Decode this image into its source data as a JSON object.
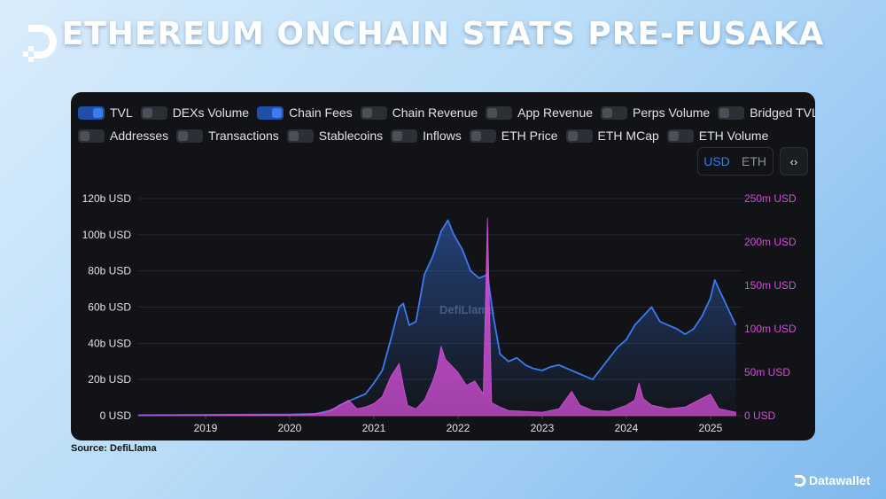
{
  "title": "ETHEREUM ONCHAIN STATS PRE-FUSAKA",
  "source": "Source: DefiLlama",
  "brand": "Datawallet",
  "watermark": "DefiLlama",
  "toggle_rows": [
    [
      {
        "label": "TVL",
        "on": true
      },
      {
        "label": "DEXs Volume",
        "on": false
      },
      {
        "label": "Chain Fees",
        "on": true
      },
      {
        "label": "Chain Revenue",
        "on": false
      },
      {
        "label": "App Revenue",
        "on": false
      },
      {
        "label": "Perps Volume",
        "on": false
      },
      {
        "label": "Bridged TVL",
        "on": false
      }
    ],
    [
      {
        "label": "Addresses",
        "on": false
      },
      {
        "label": "Transactions",
        "on": false
      },
      {
        "label": "Stablecoins",
        "on": false
      },
      {
        "label": "Inflows",
        "on": false
      },
      {
        "label": "ETH Price",
        "on": false
      },
      {
        "label": "ETH MCap",
        "on": false
      },
      {
        "label": "ETH Volume",
        "on": false
      }
    ]
  ],
  "unit_toggle": {
    "usd": "USD",
    "eth": "ETH",
    "active": "USD"
  },
  "embed_icon": "code-icon",
  "colors": {
    "tvl": "#3d7af0",
    "fees": "#d14fd6",
    "background": "#111316"
  },
  "chart_data": {
    "type": "area",
    "x_ticks": [
      "2019",
      "2020",
      "2021",
      "2022",
      "2023",
      "2024",
      "2025"
    ],
    "y_left": {
      "ticks": [
        "0 USD",
        "20b USD",
        "40b USD",
        "60b USD",
        "80b USD",
        "100b USD",
        "120b USD"
      ],
      "range": [
        0,
        120
      ]
    },
    "y_right": {
      "ticks": [
        "0 USD",
        "50m USD",
        "100m USD",
        "150m USD",
        "200m USD",
        "250m USD"
      ],
      "range": [
        0,
        250
      ]
    },
    "grid": "horizontal",
    "series": [
      {
        "name": "TVL",
        "axis": "left",
        "x": [
          2018.2,
          2019.0,
          2019.5,
          2020.0,
          2020.3,
          2020.5,
          2020.6,
          2020.75,
          2020.9,
          2021.0,
          2021.1,
          2021.2,
          2021.3,
          2021.35,
          2021.42,
          2021.5,
          2021.6,
          2021.7,
          2021.8,
          2021.88,
          2021.95,
          2022.05,
          2022.15,
          2022.25,
          2022.35,
          2022.42,
          2022.5,
          2022.6,
          2022.7,
          2022.8,
          2022.9,
          2023.0,
          2023.1,
          2023.2,
          2023.3,
          2023.4,
          2023.5,
          2023.6,
          2023.7,
          2023.8,
          2023.9,
          2024.0,
          2024.1,
          2024.2,
          2024.3,
          2024.4,
          2024.5,
          2024.6,
          2024.7,
          2024.8,
          2024.9,
          2025.0,
          2025.05,
          2025.1,
          2025.2,
          2025.3
        ],
        "values": [
          0.3,
          0.5,
          0.6,
          0.7,
          1.0,
          3,
          6,
          9,
          12,
          18,
          25,
          42,
          60,
          62,
          50,
          52,
          78,
          88,
          102,
          108,
          100,
          92,
          80,
          76,
          78,
          55,
          34,
          30,
          32,
          28,
          26,
          25,
          27,
          28,
          26,
          24,
          22,
          20,
          26,
          32,
          38,
          42,
          50,
          55,
          60,
          52,
          50,
          48,
          45,
          48,
          55,
          65,
          75,
          70,
          60,
          50
        ]
      },
      {
        "name": "Chain Fees",
        "axis": "right",
        "x": [
          2018.2,
          2019.0,
          2020.0,
          2020.4,
          2020.6,
          2020.7,
          2020.8,
          2020.9,
          2021.0,
          2021.1,
          2021.2,
          2021.3,
          2021.35,
          2021.4,
          2021.5,
          2021.6,
          2021.7,
          2021.75,
          2021.8,
          2021.85,
          2021.9,
          2022.0,
          2022.1,
          2022.2,
          2022.3,
          2022.35,
          2022.4,
          2022.5,
          2022.6,
          2022.8,
          2023.0,
          2023.2,
          2023.35,
          2023.45,
          2023.6,
          2023.8,
          2024.0,
          2024.1,
          2024.15,
          2024.2,
          2024.3,
          2024.5,
          2024.7,
          2024.9,
          2025.0,
          2025.1,
          2025.3
        ],
        "values": [
          0.2,
          0.4,
          1,
          3,
          12,
          18,
          8,
          10,
          14,
          22,
          45,
          60,
          35,
          12,
          8,
          18,
          40,
          55,
          80,
          65,
          60,
          50,
          35,
          40,
          25,
          228,
          15,
          10,
          6,
          5,
          4,
          8,
          28,
          12,
          6,
          5,
          12,
          18,
          38,
          20,
          12,
          8,
          10,
          20,
          25,
          8,
          4
        ]
      }
    ]
  }
}
